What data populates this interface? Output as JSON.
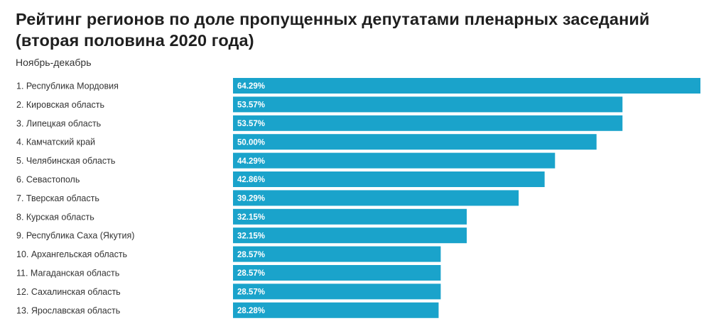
{
  "chart_data": {
    "type": "bar",
    "orientation": "horizontal",
    "title": "Рейтинг регионов по доле пропущенных депутатами пленарных заседаний (вторая половина 2020 года)",
    "subtitle": "Ноябрь-декабрь",
    "categories": [
      "1. Республика Мордовия",
      "2. Кировская область",
      "3. Липецкая область",
      "4. Камчатский край",
      "5. Челябинская область",
      "6. Севастополь",
      "7. Тверская область",
      "8. Курская область",
      "9. Республика Саха (Якутия)",
      "10. Архангельская область",
      "11. Магаданская область",
      "12. Сахалинская область",
      "13. Ярославская область"
    ],
    "values": [
      64.29,
      53.57,
      53.57,
      50.0,
      44.29,
      42.86,
      39.29,
      32.15,
      32.15,
      28.57,
      28.57,
      28.57,
      28.28
    ],
    "value_labels": [
      "64.29%",
      "53.57%",
      "53.57%",
      "50.00%",
      "44.29%",
      "42.86%",
      "39.29%",
      "32.15%",
      "32.15%",
      "28.57%",
      "28.57%",
      "28.57%",
      "28.28%"
    ],
    "bar_color": "#1aa3cb",
    "data_label_color": "#ffffff",
    "xlim": [
      0,
      64.29
    ],
    "grid": false,
    "legend": "none"
  }
}
